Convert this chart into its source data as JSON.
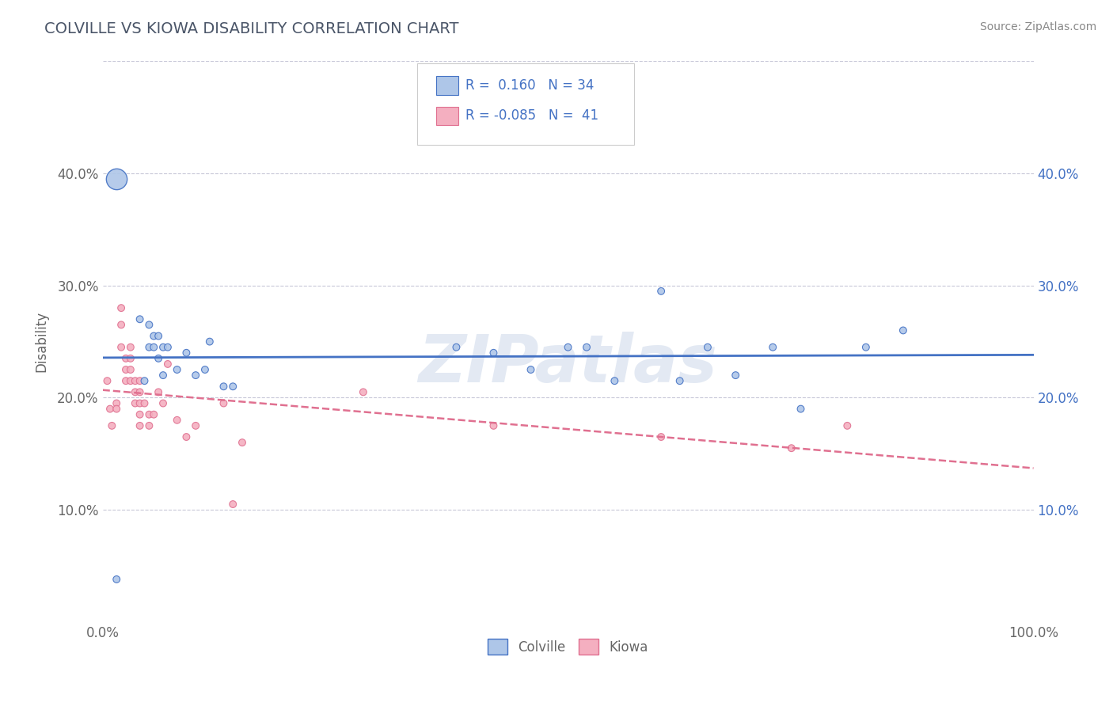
{
  "title": "COLVILLE VS KIOWA DISABILITY CORRELATION CHART",
  "source": "Source: ZipAtlas.com",
  "ylabel": "Disability",
  "xlim": [
    0.0,
    1.0
  ],
  "ylim": [
    0.0,
    0.5
  ],
  "yticks": [
    0.1,
    0.2,
    0.3,
    0.4
  ],
  "ytick_labels": [
    "10.0%",
    "20.0%",
    "30.0%",
    "40.0%"
  ],
  "colville_color": "#aec6e8",
  "kiowa_color": "#f4afc0",
  "colville_line_color": "#4472c4",
  "kiowa_line_color": "#e07090",
  "legend_R_colville": "0.160",
  "legend_N_colville": "34",
  "legend_R_kiowa": "-0.085",
  "legend_N_kiowa": "41",
  "colville_x": [
    0.015,
    0.04,
    0.045,
    0.05,
    0.05,
    0.055,
    0.055,
    0.06,
    0.06,
    0.065,
    0.065,
    0.07,
    0.08,
    0.09,
    0.1,
    0.11,
    0.115,
    0.13,
    0.14,
    0.38,
    0.42,
    0.46,
    0.5,
    0.52,
    0.55,
    0.6,
    0.62,
    0.65,
    0.68,
    0.72,
    0.75,
    0.82,
    0.86,
    0.015
  ],
  "colville_y": [
    0.038,
    0.27,
    0.215,
    0.265,
    0.245,
    0.255,
    0.245,
    0.255,
    0.235,
    0.245,
    0.22,
    0.245,
    0.225,
    0.24,
    0.22,
    0.225,
    0.25,
    0.21,
    0.21,
    0.245,
    0.24,
    0.225,
    0.245,
    0.245,
    0.215,
    0.295,
    0.215,
    0.245,
    0.22,
    0.245,
    0.19,
    0.245,
    0.26,
    0.395
  ],
  "colville_sizes": [
    40,
    40,
    40,
    40,
    40,
    40,
    40,
    40,
    40,
    40,
    40,
    40,
    40,
    40,
    40,
    40,
    40,
    40,
    40,
    40,
    40,
    40,
    40,
    40,
    40,
    40,
    40,
    40,
    40,
    40,
    40,
    40,
    40,
    120
  ],
  "kiowa_x": [
    0.005,
    0.008,
    0.01,
    0.015,
    0.015,
    0.02,
    0.02,
    0.02,
    0.025,
    0.025,
    0.025,
    0.03,
    0.03,
    0.03,
    0.03,
    0.035,
    0.035,
    0.035,
    0.04,
    0.04,
    0.04,
    0.04,
    0.04,
    0.045,
    0.05,
    0.05,
    0.055,
    0.06,
    0.065,
    0.07,
    0.08,
    0.09,
    0.1,
    0.13,
    0.14,
    0.15,
    0.28,
    0.42,
    0.6,
    0.74,
    0.8
  ],
  "kiowa_y": [
    0.215,
    0.19,
    0.175,
    0.195,
    0.19,
    0.28,
    0.265,
    0.245,
    0.235,
    0.225,
    0.215,
    0.245,
    0.235,
    0.225,
    0.215,
    0.215,
    0.205,
    0.195,
    0.215,
    0.205,
    0.195,
    0.185,
    0.175,
    0.195,
    0.185,
    0.175,
    0.185,
    0.205,
    0.195,
    0.23,
    0.18,
    0.165,
    0.175,
    0.195,
    0.105,
    0.16,
    0.205,
    0.175,
    0.165,
    0.155,
    0.175
  ],
  "kiowa_sizes": [
    40,
    40,
    40,
    40,
    40,
    40,
    40,
    40,
    40,
    40,
    40,
    40,
    40,
    40,
    40,
    40,
    40,
    40,
    40,
    40,
    40,
    40,
    40,
    40,
    40,
    40,
    40,
    40,
    40,
    40,
    40,
    40,
    40,
    40,
    40,
    40,
    40,
    40,
    40,
    40,
    40
  ],
  "watermark": "ZIPatlas",
  "background_color": "#ffffff",
  "grid_color": "#c8c8d8",
  "title_color": "#4a5568",
  "source_color": "#888888",
  "tick_color": "#666666"
}
